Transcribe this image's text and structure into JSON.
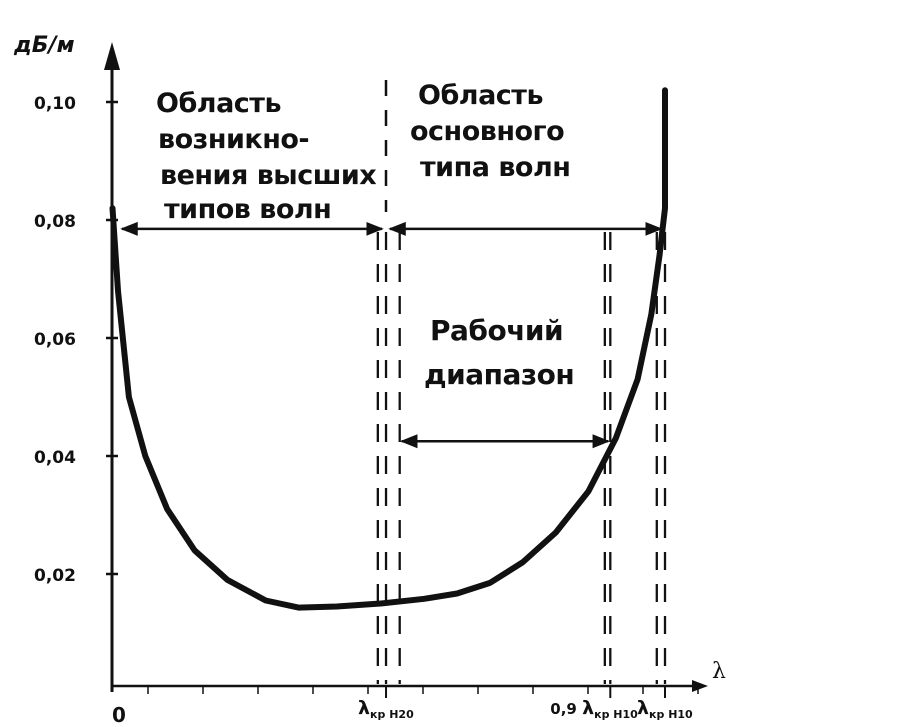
{
  "chart_data": {
    "type": "line",
    "ylabel": "дБ/м",
    "xlabel": "λ",
    "origin_label": "0",
    "ylim": [
      0,
      0.108
    ],
    "y_ticks": [
      {
        "value": 0.1,
        "label": "0,10"
      },
      {
        "value": 0.08,
        "label": "0,08"
      },
      {
        "value": 0.06,
        "label": "0,06"
      },
      {
        "value": 0.04,
        "label": "0,04"
      },
      {
        "value": 0.02,
        "label": "0,02"
      }
    ],
    "x_markers": [
      {
        "key": "h20",
        "prefix": "",
        "base": "λ",
        "sub": "кр Н20",
        "x": 0.49
      },
      {
        "key": "h10_09",
        "prefix": "0,9 ",
        "base": "λ",
        "sub": "кр Н10",
        "x": 0.9
      },
      {
        "key": "h10",
        "prefix": "",
        "base": "λ",
        "sub": "кр Н10",
        "x": 1.0
      }
    ],
    "dashed_lines_x": [
      0.475,
      0.49,
      0.515,
      0.89,
      0.9,
      0.985,
      1.0
    ],
    "series": [
      {
        "x": [
          -0.01,
          0.0,
          0.02,
          0.05,
          0.09,
          0.14,
          0.2,
          0.27,
          0.33,
          0.4,
          0.48,
          0.56,
          0.62,
          0.68,
          0.74,
          0.8,
          0.86,
          0.91,
          0.95,
          0.975,
          0.99,
          1.0,
          1.0
        ],
        "values": [
          0.082,
          0.068,
          0.05,
          0.04,
          0.031,
          0.024,
          0.019,
          0.0155,
          0.0143,
          0.0145,
          0.015,
          0.0158,
          0.0167,
          0.0185,
          0.022,
          0.027,
          0.034,
          0.043,
          0.053,
          0.064,
          0.074,
          0.082,
          0.102
        ]
      }
    ],
    "annotations": {
      "left_region": [
        "Область",
        "возникно-",
        "вения высших",
        "типов волн"
      ],
      "right_region": [
        "Область",
        "основного",
        "типа волн"
      ],
      "working_range": [
        "Рабочий",
        "диапазон"
      ]
    },
    "arrows": {
      "region_split_x": 0.49,
      "region_level": 0.0785,
      "working_range_from": 0.515,
      "working_range_to": 0.9,
      "working_range_level": 0.0425
    }
  }
}
